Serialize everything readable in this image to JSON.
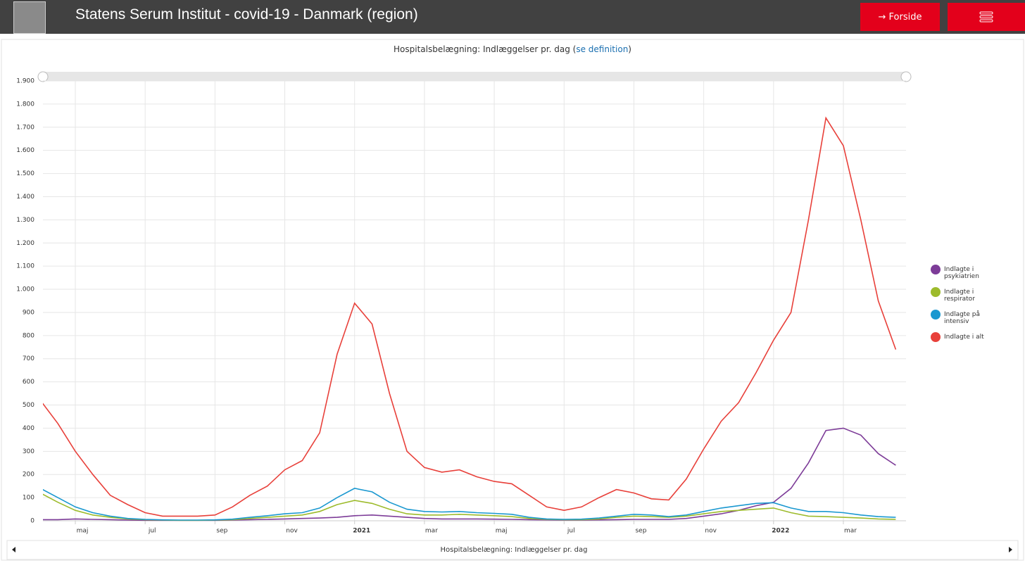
{
  "header": {
    "title": "Statens Serum Institut - covid-19 - Danmark (region)",
    "buttons": [
      "Forside"
    ]
  },
  "chart_data": {
    "type": "line",
    "title": "Hospitalsbelægning: Indlæggelser pr. dag",
    "title_link": "se definition",
    "navigator_label": "Hospitalsbelægning: Indlæggelser pr. dag",
    "categories": [
      null,
      null,
      "maj",
      null,
      null,
      null,
      "jul",
      null,
      null,
      null,
      "sep",
      null,
      null,
      null,
      "nov",
      null,
      null,
      null,
      "2021",
      null,
      null,
      null,
      "mar",
      null,
      null,
      null,
      "maj",
      null,
      null,
      null,
      "jul",
      null,
      null,
      null,
      "sep",
      null,
      null,
      null,
      "nov",
      null,
      null,
      null,
      "2022",
      null,
      null,
      null,
      "mar",
      null,
      null,
      null
    ],
    "ylim": [
      0,
      1900
    ],
    "yticks": [
      0,
      100,
      200,
      300,
      400,
      500,
      600,
      700,
      800,
      900,
      {
        "value": 1000,
        "label": "1.000"
      },
      {
        "value": 1100,
        "label": "1.100"
      },
      {
        "value": 1200,
        "label": "1.200"
      },
      {
        "value": 1300,
        "label": "1.300"
      },
      {
        "value": 1400,
        "label": "1.400"
      },
      {
        "value": 1500,
        "label": "1.500"
      },
      {
        "value": 1600,
        "label": "1.600"
      },
      {
        "value": 1700,
        "label": "1.700"
      },
      {
        "value": 1800,
        "label": "1.800"
      },
      {
        "value": 1900,
        "label": "1.900"
      }
    ],
    "grid": true,
    "legend": "right",
    "series": [
      {
        "name": "Indlagte i psykiatrien",
        "color": "#7d3c98",
        "values": [
          5,
          5,
          8,
          6,
          5,
          3,
          2,
          2,
          2,
          2,
          2,
          3,
          5,
          6,
          8,
          10,
          12,
          15,
          22,
          25,
          20,
          15,
          10,
          8,
          8,
          8,
          7,
          6,
          5,
          4,
          3,
          3,
          4,
          5,
          6,
          6,
          6,
          10,
          20,
          30,
          45,
          65,
          80,
          140,
          250,
          390,
          400,
          370,
          290,
          240
        ]
      },
      {
        "name": "Indlagte i respirator",
        "color": "#9dbb2c",
        "values": [
          120,
          80,
          45,
          25,
          15,
          8,
          5,
          3,
          2,
          2,
          3,
          5,
          10,
          15,
          20,
          25,
          40,
          70,
          88,
          75,
          50,
          30,
          25,
          25,
          28,
          25,
          22,
          18,
          10,
          6,
          5,
          5,
          8,
          15,
          20,
          18,
          15,
          20,
          30,
          40,
          45,
          50,
          55,
          35,
          20,
          18,
          15,
          12,
          8,
          6
        ]
      },
      {
        "name": "Indlagte på intensiv",
        "color": "#1a98d0",
        "values": [
          140,
          100,
          60,
          35,
          20,
          10,
          6,
          4,
          3,
          3,
          4,
          7,
          15,
          22,
          30,
          35,
          55,
          100,
          140,
          125,
          80,
          50,
          40,
          38,
          40,
          35,
          32,
          28,
          15,
          8,
          6,
          7,
          12,
          20,
          28,
          25,
          18,
          25,
          40,
          55,
          65,
          75,
          78,
          55,
          40,
          40,
          35,
          25,
          18,
          15
        ]
      },
      {
        "name": "Indlagte i alt",
        "color": "#e8403a",
        "values": [
          520,
          420,
          300,
          200,
          110,
          70,
          35,
          20,
          20,
          20,
          25,
          60,
          110,
          150,
          220,
          260,
          380,
          720,
          940,
          850,
          550,
          300,
          230,
          210,
          220,
          190,
          170,
          160,
          110,
          60,
          45,
          60,
          100,
          135,
          120,
          95,
          90,
          180,
          310,
          430,
          510,
          640,
          780,
          900,
          1300,
          1740,
          1620,
          1300,
          950,
          740
        ]
      }
    ]
  }
}
